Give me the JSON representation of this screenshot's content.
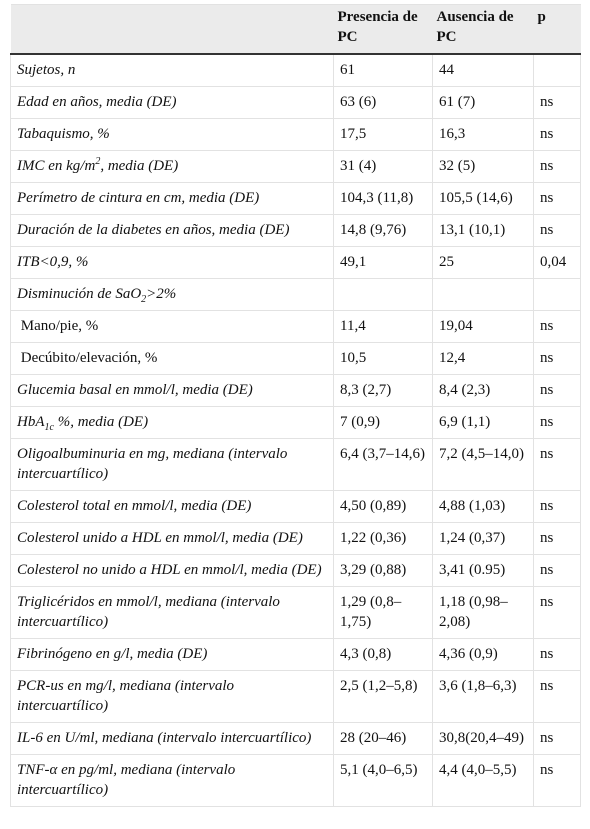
{
  "table": {
    "header": [
      null,
      "Presencia de PC",
      "Ausencia de PC",
      "p"
    ],
    "rows": [
      {
        "italic": true,
        "label": [
          {
            "text": "Sujetos, n"
          }
        ],
        "values": [
          "61",
          "44",
          null
        ]
      },
      {
        "italic": true,
        "label": [
          {
            "text": "Edad en años, media (DE)"
          }
        ],
        "values": [
          "63 (6)",
          "61 (7)",
          "ns"
        ]
      },
      {
        "italic": true,
        "label": [
          {
            "text": "Tabaquismo, %"
          }
        ],
        "values": [
          "17,5",
          "16,3",
          "ns"
        ]
      },
      {
        "italic": true,
        "label": [
          {
            "text": "IMC en kg/m"
          },
          {
            "sup": "2"
          },
          {
            "text": ", media (DE)"
          }
        ],
        "values": [
          "31 (4)",
          "32 (5)",
          "ns"
        ]
      },
      {
        "italic": true,
        "label": [
          {
            "text": "Perímetro de cintura en cm, media (DE)"
          }
        ],
        "values": [
          "104,3 (11,8)",
          "105,5 (14,6)",
          "ns"
        ]
      },
      {
        "italic": true,
        "label": [
          {
            "text": "Duración de la diabetes en años, media (DE)"
          }
        ],
        "values": [
          "14,8 (9,76)",
          "13,1 (10,1)",
          "ns"
        ]
      },
      {
        "italic": true,
        "label": [
          {
            "text": "ITB<0,9, %"
          }
        ],
        "values": [
          "49,1",
          "25",
          "0,04"
        ]
      },
      {
        "italic": true,
        "label": [
          {
            "text": "Disminución de SaO"
          },
          {
            "sub": "2"
          },
          {
            "text": ">2%"
          }
        ],
        "values": [
          null,
          null,
          null
        ]
      },
      {
        "italic": false,
        "label": [
          {
            "text": " Mano/pie, %"
          }
        ],
        "values": [
          "11,4",
          "19,04",
          "ns"
        ]
      },
      {
        "italic": false,
        "label": [
          {
            "text": " Decúbito/elevación, %"
          }
        ],
        "values": [
          "10,5",
          "12,4",
          "ns"
        ]
      },
      {
        "italic": true,
        "label": [
          {
            "text": "Glucemia basal en mmol/l, media (DE)"
          }
        ],
        "values": [
          "8,3 (2,7)",
          "8,4 (2,3)",
          "ns"
        ]
      },
      {
        "italic": true,
        "label": [
          {
            "text": "HbA"
          },
          {
            "sub": "1c"
          },
          {
            "text": " %, media (DE)"
          }
        ],
        "values": [
          "7 (0,9)",
          "6,9 (1,1)",
          "ns"
        ]
      },
      {
        "italic": true,
        "label": [
          {
            "text": "Oligoalbuminuria en mg, mediana (intervalo intercuartílico)"
          }
        ],
        "values": [
          "6,4 (3,7–14,6)",
          "7,2 (4,5–14,0)",
          "ns"
        ]
      },
      {
        "italic": true,
        "label": [
          {
            "text": "Colesterol total en mmol/l, media (DE)"
          }
        ],
        "values": [
          "4,50 (0,89)",
          "4,88 (1,03)",
          "ns"
        ]
      },
      {
        "italic": true,
        "label": [
          {
            "text": "Colesterol unido a HDL en mmol/l, media (DE)"
          }
        ],
        "values": [
          "1,22 (0,36)",
          "1,24 (0,37)",
          "ns"
        ]
      },
      {
        "italic": true,
        "label": [
          {
            "text": "Colesterol no unido a HDL en mmol/l, media (DE)"
          }
        ],
        "values": [
          "3,29 (0,88)",
          "3,41 (0.95)",
          "ns"
        ]
      },
      {
        "italic": true,
        "label": [
          {
            "text": "Triglicéridos en mmol/l, mediana (intervalo intercuartílico)"
          }
        ],
        "values": [
          "1,29 (0,8–1,75)",
          "1,18 (0,98–2,08)",
          "ns"
        ]
      },
      {
        "italic": true,
        "label": [
          {
            "text": "Fibrinógeno en g/l, media (DE)"
          }
        ],
        "values": [
          "4,3 (0,8)",
          "4,36 (0,9)",
          "ns"
        ]
      },
      {
        "italic": true,
        "label": [
          {
            "text": "PCR-us en mg/l, mediana (intervalo intercuartílico)"
          }
        ],
        "values": [
          "2,5 (1,2–5,8)",
          "3,6 (1,8–6,3)",
          "ns"
        ]
      },
      {
        "italic": true,
        "label": [
          {
            "text": "IL-6 en U/ml, mediana (intervalo intercuartílico)"
          }
        ],
        "values": [
          "28 (20–46)",
          "30,8(20,4–49)",
          "ns"
        ]
      },
      {
        "italic": true,
        "label": [
          {
            "text": "TNF-α en pg/ml, mediana (intervalo intercuartílico)"
          }
        ],
        "values": [
          "5,1 (4,0–6,5)",
          "4,4 (4,0–5,5)",
          "ns"
        ]
      }
    ]
  }
}
